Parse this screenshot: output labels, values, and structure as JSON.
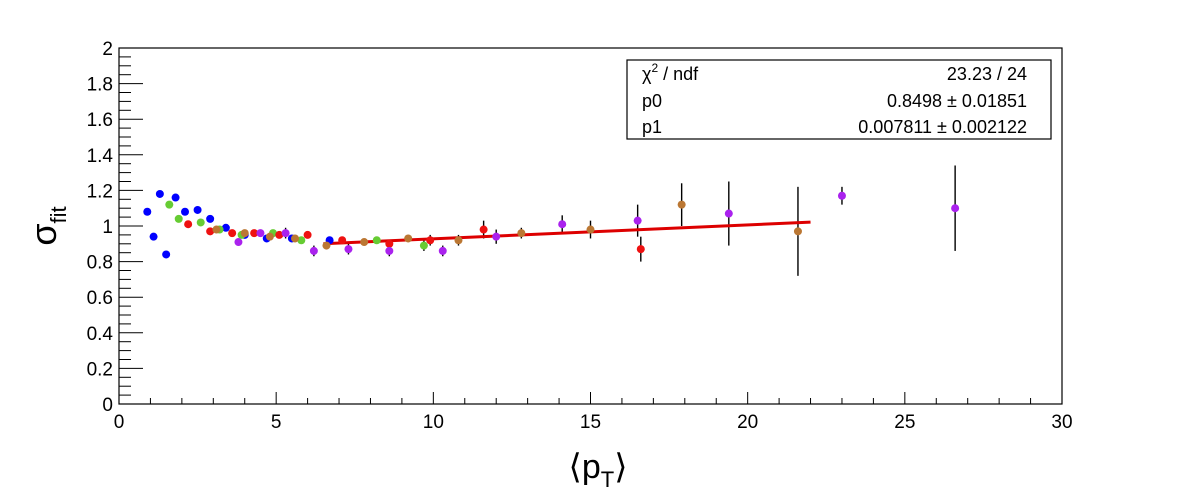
{
  "chart_data": {
    "type": "scatter",
    "title": "",
    "xlabel": "⟨p_T⟩",
    "ylabel": "σ_fit",
    "xlim": [
      0,
      30
    ],
    "ylim": [
      0,
      2
    ],
    "x_ticks": [
      "0",
      "5",
      "10",
      "15",
      "20",
      "25",
      "30"
    ],
    "y_ticks": [
      "0",
      "0.2",
      "0.4",
      "0.6",
      "0.8",
      "1",
      "1.2",
      "1.4",
      "1.6",
      "1.8",
      "2"
    ],
    "grid": false,
    "series": [
      {
        "color": "#0000ff",
        "points": [
          {
            "x": 0.9,
            "y": 1.08,
            "err": 0
          },
          {
            "x": 1.1,
            "y": 0.94,
            "err": 0
          },
          {
            "x": 1.3,
            "y": 1.18,
            "err": 0
          },
          {
            "x": 1.5,
            "y": 0.84,
            "err": 0
          },
          {
            "x": 1.8,
            "y": 1.16,
            "err": 0
          },
          {
            "x": 2.1,
            "y": 1.08,
            "err": 0
          },
          {
            "x": 2.5,
            "y": 1.09,
            "err": 0
          },
          {
            "x": 2.9,
            "y": 1.04,
            "err": 0
          },
          {
            "x": 3.4,
            "y": 0.99,
            "err": 0
          },
          {
            "x": 4.0,
            "y": 0.95,
            "err": 0
          },
          {
            "x": 4.7,
            "y": 0.93,
            "err": 0.02
          },
          {
            "x": 5.5,
            "y": 0.93,
            "err": 0.02
          },
          {
            "x": 6.7,
            "y": 0.92,
            "err": 0.02
          }
        ]
      },
      {
        "color": "#66cc33",
        "points": [
          {
            "x": 1.6,
            "y": 1.12,
            "err": 0
          },
          {
            "x": 1.9,
            "y": 1.04,
            "err": 0
          },
          {
            "x": 2.6,
            "y": 1.02,
            "err": 0
          },
          {
            "x": 3.2,
            "y": 0.98,
            "err": 0
          },
          {
            "x": 3.9,
            "y": 0.95,
            "err": 0
          },
          {
            "x": 4.9,
            "y": 0.96,
            "err": 0.02
          },
          {
            "x": 5.8,
            "y": 0.92,
            "err": 0.02
          },
          {
            "x": 8.2,
            "y": 0.92,
            "err": 0.02
          },
          {
            "x": 9.7,
            "y": 0.89,
            "err": 0.03
          }
        ]
      },
      {
        "color": "#ee1111",
        "points": [
          {
            "x": 2.2,
            "y": 1.01,
            "err": 0
          },
          {
            "x": 2.9,
            "y": 0.97,
            "err": 0.02
          },
          {
            "x": 3.6,
            "y": 0.96,
            "err": 0.02
          },
          {
            "x": 4.3,
            "y": 0.96,
            "err": 0.02
          },
          {
            "x": 5.1,
            "y": 0.95,
            "err": 0.02
          },
          {
            "x": 6.0,
            "y": 0.95,
            "err": 0.02
          },
          {
            "x": 7.1,
            "y": 0.92,
            "err": 0.02
          },
          {
            "x": 8.6,
            "y": 0.9,
            "err": 0.02
          },
          {
            "x": 9.9,
            "y": 0.92,
            "err": 0.03
          },
          {
            "x": 11.6,
            "y": 0.98,
            "err": 0.05
          },
          {
            "x": 16.6,
            "y": 0.87,
            "err": 0.07
          }
        ]
      },
      {
        "color": "#bb7733",
        "points": [
          {
            "x": 3.1,
            "y": 0.98,
            "err": 0.02
          },
          {
            "x": 4.0,
            "y": 0.96,
            "err": 0.02
          },
          {
            "x": 4.8,
            "y": 0.94,
            "err": 0.02
          },
          {
            "x": 5.6,
            "y": 0.93,
            "err": 0.02
          },
          {
            "x": 6.6,
            "y": 0.89,
            "err": 0.02
          },
          {
            "x": 7.8,
            "y": 0.91,
            "err": 0.02
          },
          {
            "x": 9.2,
            "y": 0.93,
            "err": 0.02
          },
          {
            "x": 10.8,
            "y": 0.92,
            "err": 0.03
          },
          {
            "x": 12.8,
            "y": 0.96,
            "err": 0.03
          },
          {
            "x": 15.0,
            "y": 0.98,
            "err": 0.05
          },
          {
            "x": 17.9,
            "y": 1.12,
            "err": 0.12
          },
          {
            "x": 21.6,
            "y": 0.97,
            "err": 0.25
          }
        ]
      },
      {
        "color": "#aa22ee",
        "points": [
          {
            "x": 3.8,
            "y": 0.91,
            "err": 0.02
          },
          {
            "x": 4.5,
            "y": 0.96,
            "err": 0.02
          },
          {
            "x": 5.3,
            "y": 0.96,
            "err": 0.03
          },
          {
            "x": 6.2,
            "y": 0.86,
            "err": 0.03
          },
          {
            "x": 7.3,
            "y": 0.87,
            "err": 0.03
          },
          {
            "x": 8.6,
            "y": 0.86,
            "err": 0.03
          },
          {
            "x": 10.3,
            "y": 0.86,
            "err": 0.03
          },
          {
            "x": 12.0,
            "y": 0.94,
            "err": 0.04
          },
          {
            "x": 14.1,
            "y": 1.01,
            "err": 0.05
          },
          {
            "x": 16.5,
            "y": 1.03,
            "err": 0.09
          },
          {
            "x": 19.4,
            "y": 1.07,
            "err": 0.18
          },
          {
            "x": 23.0,
            "y": 1.17,
            "err": 0.05
          },
          {
            "x": 26.6,
            "y": 1.1,
            "err": 0.24
          }
        ]
      }
    ],
    "fit": {
      "function": "linear",
      "color": "#dd0000",
      "x_range": [
        6.5,
        22.0
      ],
      "p0": 0.8498,
      "p1": 0.007811
    },
    "stats_box": {
      "placement": "top-right",
      "rows": [
        {
          "label": "χ² / ndf",
          "value": "23.23 / 24"
        },
        {
          "label": "p0",
          "value": "0.8498 ± 0.01851"
        },
        {
          "label": "p1",
          "value": "0.007811 ± 0.002122"
        }
      ]
    }
  }
}
